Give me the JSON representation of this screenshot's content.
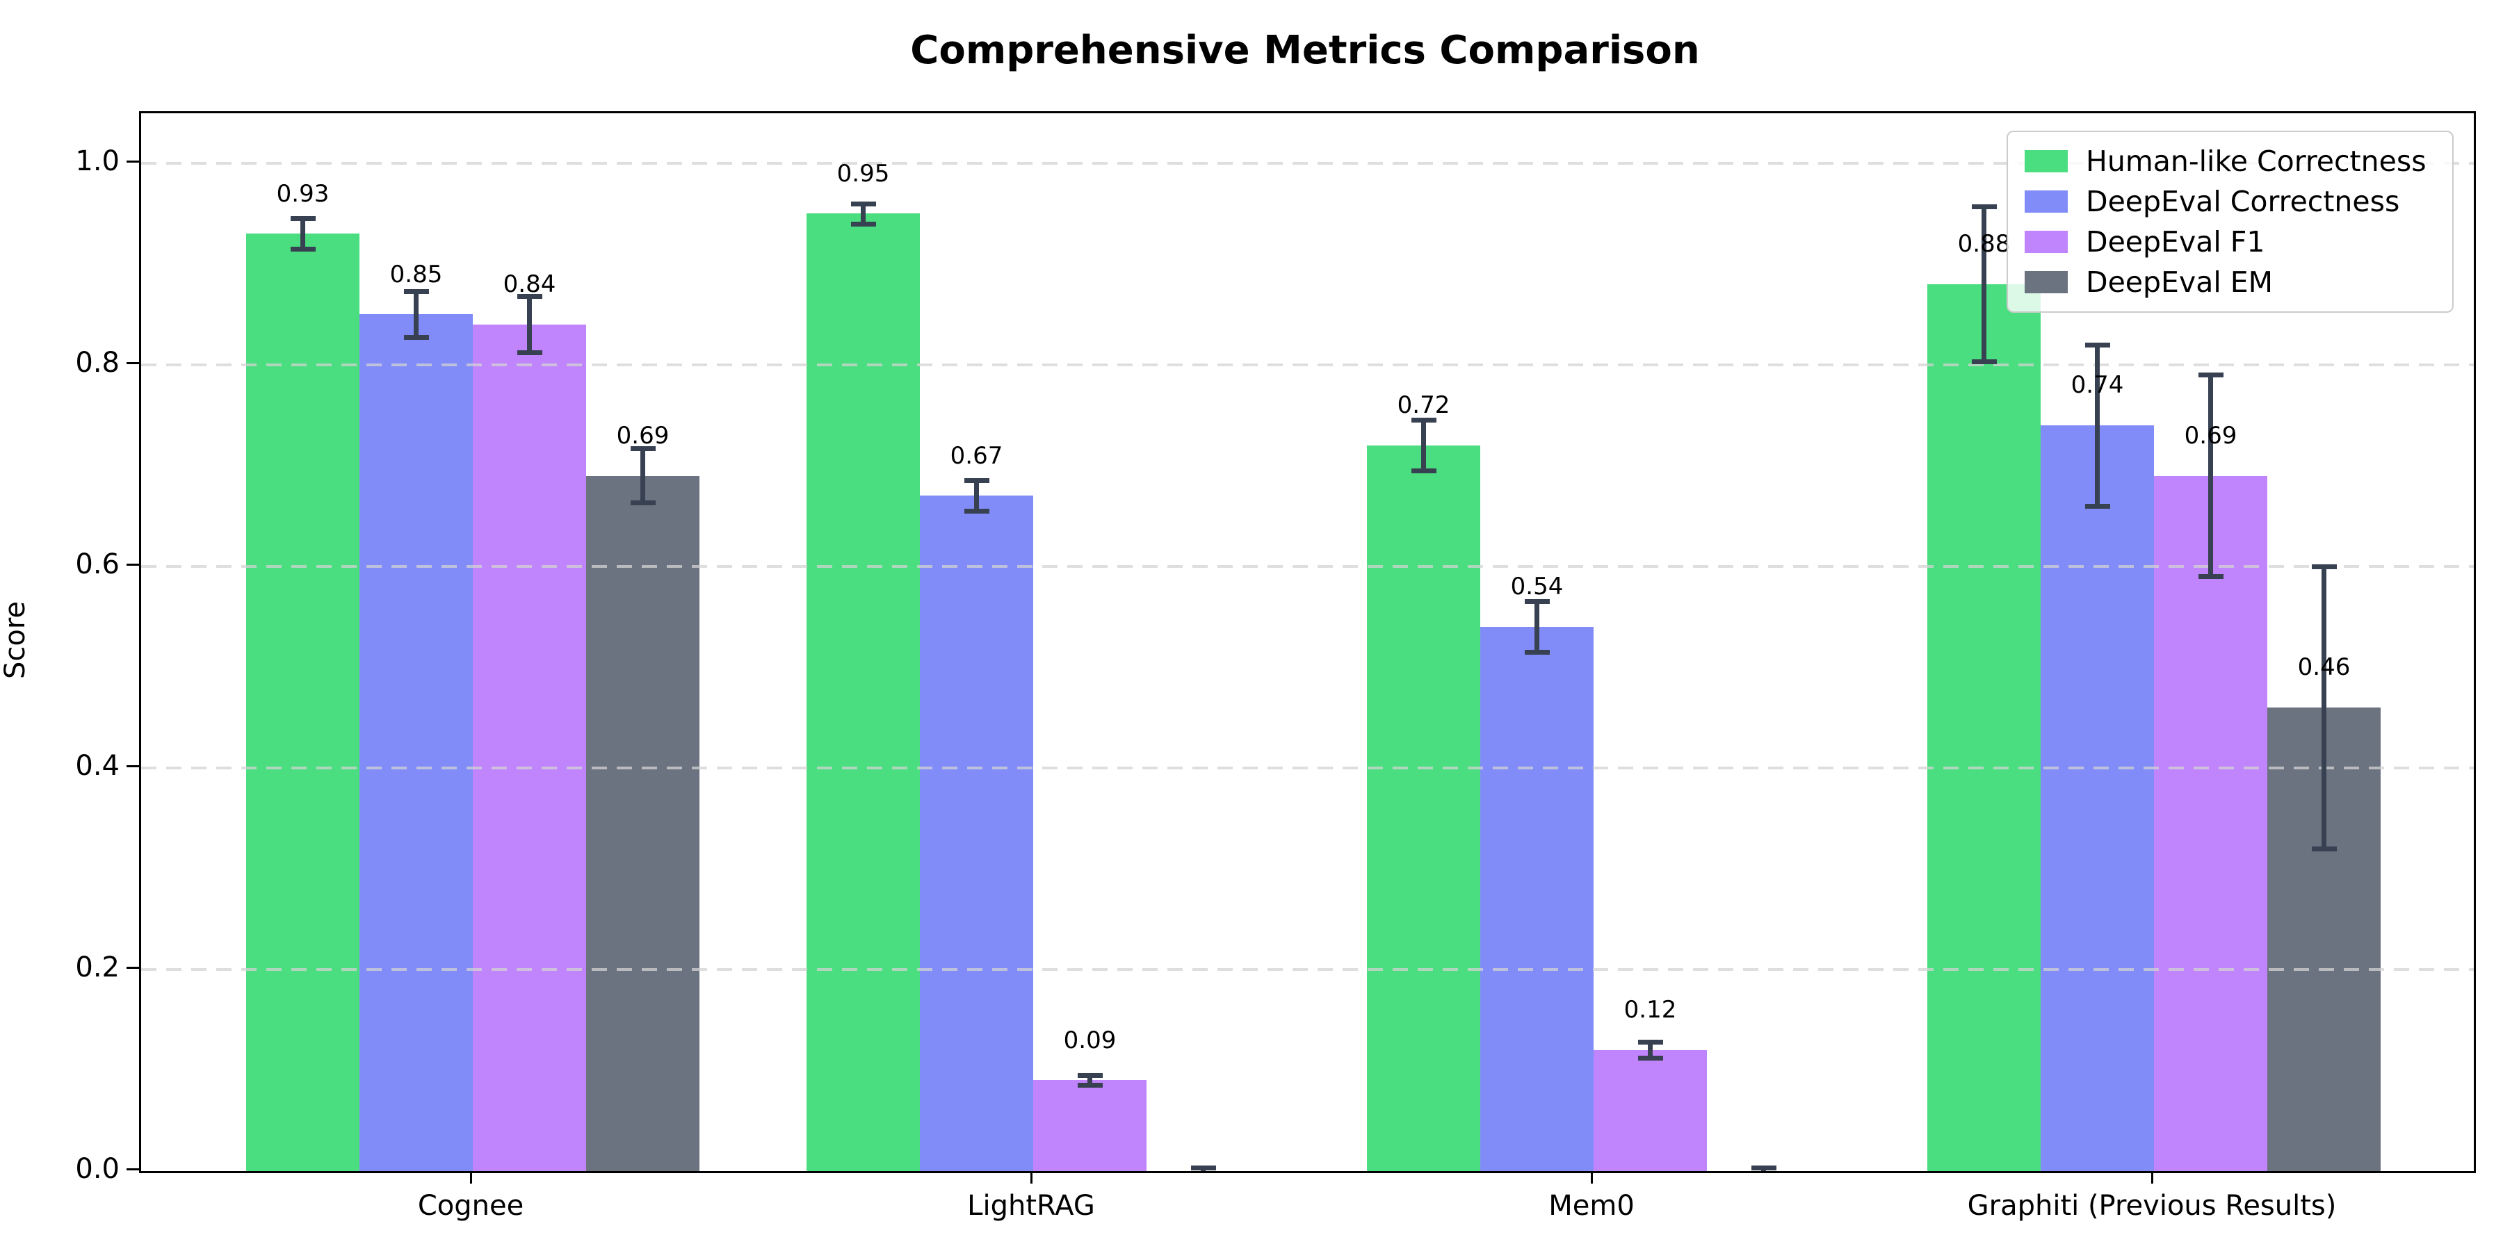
{
  "title": "Comprehensive Metrics Comparison",
  "chart_data": {
    "type": "bar",
    "title": "Comprehensive Metrics Comparison",
    "xlabel": "",
    "ylabel": "Score",
    "ylim": [
      0,
      1.05
    ],
    "yticks": [
      "0.0",
      "0.2",
      "0.4",
      "0.6",
      "0.8",
      "1.0"
    ],
    "grid": "horizontal-dashed",
    "grid_above_bars": true,
    "legend_position": "upper-right",
    "categories": [
      "Cognee",
      "LightRAG",
      "Mem0",
      "Graphiti (Previous Results)"
    ],
    "series": [
      {
        "name": "Human-like Correctness",
        "color": "#4ade80",
        "values": [
          0.93,
          0.95,
          0.72,
          0.88
        ],
        "errors": [
          0.015,
          0.01,
          0.025,
          0.077
        ],
        "labels": [
          "0.93",
          "0.95",
          "0.72",
          "0.88"
        ]
      },
      {
        "name": "DeepEval Correctness",
        "color": "#818cf8",
        "values": [
          0.85,
          0.67,
          0.54,
          0.74
        ],
        "errors": [
          0.023,
          0.015,
          0.025,
          0.08
        ],
        "labels": [
          "0.85",
          "0.67",
          "0.54",
          "0.74"
        ]
      },
      {
        "name": "DeepEval F1",
        "color": "#c084fc",
        "values": [
          0.84,
          0.09,
          0.12,
          0.69
        ],
        "errors": [
          0.028,
          0.005,
          0.008,
          0.1
        ],
        "labels": [
          "0.84",
          "0.09",
          "0.12",
          "0.69"
        ]
      },
      {
        "name": "DeepEval EM",
        "color": "#6b7280",
        "values": [
          0.69,
          0.0,
          0.0,
          0.46
        ],
        "errors": [
          0.027,
          0.003,
          0.003,
          0.14
        ],
        "labels": [
          "0.69",
          "",
          "",
          "0.46"
        ]
      }
    ],
    "error_bar_color": "#374151",
    "axis_color": "#000000",
    "grid_color": "#d3d3d3",
    "background": "#ffffff"
  }
}
